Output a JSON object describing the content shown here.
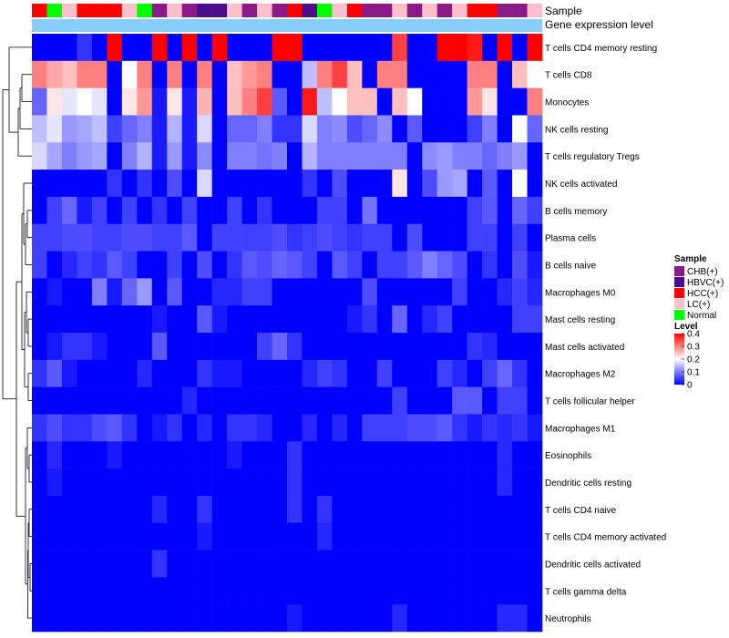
{
  "chart_data": {
    "type": "heatmap",
    "annotation_titles": [
      "Sample",
      "Gene expression level"
    ],
    "rows": [
      "T cells CD4 memory resting",
      "T cells CD8",
      "Monocytes",
      "NK cells resting",
      "T cells regulatory  Tregs",
      "NK cells activated",
      "B cells memory",
      "Plasma cells",
      "B cells naive",
      "Macrophages M0",
      "Mast cells resting",
      "Mast cells activated",
      "Macrophages M2",
      "T cells follicular helper",
      "Macrophages M1",
      "Eosinophils",
      "Dendritic cells resting",
      "T cells CD4 naive",
      "T cells CD4 memory activated",
      "Dendritic cells activated",
      "T cells gamma delta",
      "Neutrophils"
    ],
    "n_columns": 34,
    "sample_groups": [
      "HCC(+)",
      "Normal",
      "LC(+)",
      "HCC(+)",
      "HCC(+)",
      "HCC(+)",
      "LC(+)",
      "Normal",
      "CHB(+)",
      "LC(+)",
      "CHB(+)",
      "HBVC(+)",
      "HBVC(+)",
      "LC(+)",
      "CHB(+)",
      "LC(+)",
      "CHB(+)",
      "HCC(+)",
      "HBVC(+)",
      "Normal",
      "LC(+)",
      "HCC(+)",
      "CHB(+)",
      "CHB(+)",
      "LC(+)",
      "CHB(+)",
      "LC(+)",
      "CHB(+)",
      "LC(+)",
      "HCC(+)",
      "HCC(+)",
      "CHB(+)",
      "CHB(+)",
      "LC(+)"
    ],
    "values": [
      [
        0.0,
        0.0,
        0.0,
        0.04,
        0.0,
        0.4,
        0.0,
        0.0,
        0.4,
        0.0,
        0.4,
        0.0,
        0.4,
        0.0,
        0.0,
        0.0,
        0.4,
        0.4,
        0.0,
        0.0,
        0.0,
        0.0,
        0.0,
        0.0,
        0.35,
        0.0,
        0.0,
        0.4,
        0.4,
        0.38,
        0.0,
        0.4,
        0.0,
        0.4
      ],
      [
        0.3,
        0.27,
        0.25,
        0.3,
        0.3,
        0.0,
        0.2,
        0.3,
        0.0,
        0.3,
        0.0,
        0.3,
        0.0,
        0.25,
        0.28,
        0.3,
        0.0,
        0.0,
        0.15,
        0.3,
        0.35,
        0.25,
        0.0,
        0.3,
        0.3,
        0.0,
        0.0,
        0.0,
        0.0,
        0.3,
        0.3,
        0.0,
        0.25,
        0.2
      ],
      [
        0.08,
        0.22,
        0.18,
        0.2,
        0.18,
        0.0,
        0.22,
        0.28,
        0.02,
        0.22,
        0.02,
        0.26,
        0.0,
        0.25,
        0.3,
        0.35,
        0.07,
        0.0,
        0.38,
        0.15,
        0.2,
        0.25,
        0.25,
        0.0,
        0.25,
        0.2,
        0.0,
        0.0,
        0.0,
        0.28,
        0.22,
        0.0,
        0.0,
        0.3
      ],
      [
        0.15,
        0.18,
        0.12,
        0.13,
        0.15,
        0.05,
        0.08,
        0.1,
        0.02,
        0.14,
        0.02,
        0.17,
        0.0,
        0.08,
        0.08,
        0.1,
        0.04,
        0.04,
        0.17,
        0.1,
        0.11,
        0.06,
        0.08,
        0.11,
        0.0,
        0.07,
        0.0,
        0.0,
        0.0,
        0.05,
        0.1,
        0.0,
        0.2,
        0.08
      ],
      [
        0.17,
        0.13,
        0.1,
        0.12,
        0.13,
        0.0,
        0.1,
        0.14,
        0.02,
        0.12,
        0.02,
        0.11,
        0.0,
        0.1,
        0.1,
        0.09,
        0.1,
        0.0,
        0.14,
        0.1,
        0.1,
        0.1,
        0.1,
        0.1,
        0.1,
        0.0,
        0.11,
        0.12,
        0.1,
        0.1,
        0.08,
        0.1,
        0.12,
        0.0
      ],
      [
        0.0,
        0.0,
        0.0,
        0.0,
        0.0,
        0.04,
        0.0,
        0.04,
        0.0,
        0.06,
        0.0,
        0.17,
        0.0,
        0.0,
        0.0,
        0.0,
        0.0,
        0.0,
        0.04,
        0.0,
        0.06,
        0.0,
        0.0,
        0.0,
        0.22,
        0.0,
        0.06,
        0.12,
        0.13,
        0.0,
        0.07,
        0.0,
        0.2,
        0.0
      ],
      [
        0.0,
        0.05,
        0.08,
        0.02,
        0.05,
        0.0,
        0.05,
        0.0,
        0.04,
        0.0,
        0.05,
        0.0,
        0.0,
        0.05,
        0.0,
        0.04,
        0.0,
        0.0,
        0.0,
        0.05,
        0.05,
        0.0,
        0.09,
        0.0,
        0.0,
        0.0,
        0.0,
        0.0,
        0.0,
        0.05,
        0.07,
        0.0,
        0.08,
        0.05
      ],
      [
        0.05,
        0.05,
        0.06,
        0.06,
        0.05,
        0.05,
        0.06,
        0.06,
        0.05,
        0.05,
        0.07,
        0.0,
        0.05,
        0.05,
        0.05,
        0.05,
        0.06,
        0.04,
        0.05,
        0.06,
        0.05,
        0.04,
        0.05,
        0.05,
        0.0,
        0.06,
        0.0,
        0.0,
        0.0,
        0.05,
        0.05,
        0.0,
        0.05,
        0.0
      ],
      [
        0.05,
        0.0,
        0.03,
        0.05,
        0.04,
        0.07,
        0.05,
        0.0,
        0.0,
        0.05,
        0.0,
        0.06,
        0.0,
        0.04,
        0.07,
        0.06,
        0.08,
        0.07,
        0.05,
        0.0,
        0.07,
        0.05,
        0.0,
        0.05,
        0.05,
        0.07,
        0.1,
        0.08,
        0.06,
        0.0,
        0.04,
        0.0,
        0.06,
        0.02
      ],
      [
        0.0,
        0.02,
        0.0,
        0.0,
        0.1,
        0.02,
        0.08,
        0.12,
        0.0,
        0.07,
        0.0,
        0.0,
        0.03,
        0.03,
        0.05,
        0.05,
        0.0,
        0.0,
        0.0,
        0.0,
        0.0,
        0.0,
        0.06,
        0.0,
        0.0,
        0.0,
        0.0,
        0.0,
        0.05,
        0.0,
        0.0,
        0.03,
        0.05,
        0.03
      ],
      [
        0.0,
        0.0,
        0.0,
        0.0,
        0.0,
        0.0,
        0.0,
        0.0,
        0.02,
        0.0,
        0.0,
        0.07,
        0.02,
        0.0,
        0.0,
        0.0,
        0.0,
        0.0,
        0.0,
        0.0,
        0.0,
        0.02,
        0.04,
        0.0,
        0.08,
        0.0,
        0.03,
        0.05,
        0.0,
        0.0,
        0.0,
        0.0,
        0.05,
        0.05
      ],
      [
        0.0,
        0.02,
        0.04,
        0.04,
        0.02,
        0.0,
        0.0,
        0.0,
        0.07,
        0.0,
        0.0,
        0.0,
        0.0,
        0.0,
        0.0,
        0.05,
        0.08,
        0.04,
        0.0,
        0.0,
        0.0,
        0.0,
        0.0,
        0.0,
        0.0,
        0.0,
        0.0,
        0.0,
        0.0,
        0.04,
        0.03,
        0.0,
        0.0,
        0.0
      ],
      [
        0.04,
        0.07,
        0.02,
        0.0,
        0.0,
        0.0,
        0.0,
        0.03,
        0.0,
        0.0,
        0.0,
        0.04,
        0.02,
        0.02,
        0.0,
        0.0,
        0.0,
        0.0,
        0.03,
        0.05,
        0.04,
        0.0,
        0.0,
        0.05,
        0.0,
        0.0,
        0.0,
        0.05,
        0.03,
        0.0,
        0.05,
        0.08,
        0.04,
        0.0
      ],
      [
        0.0,
        0.0,
        0.0,
        0.0,
        0.0,
        0.0,
        0.0,
        0.0,
        0.0,
        0.0,
        0.03,
        0.0,
        0.0,
        0.0,
        0.0,
        0.0,
        0.0,
        0.0,
        0.0,
        0.0,
        0.0,
        0.0,
        0.0,
        0.0,
        0.05,
        0.0,
        0.0,
        0.0,
        0.07,
        0.07,
        0.0,
        0.05,
        0.05,
        0.0
      ],
      [
        0.04,
        0.06,
        0.04,
        0.04,
        0.06,
        0.07,
        0.04,
        0.0,
        0.02,
        0.04,
        0.0,
        0.03,
        0.0,
        0.04,
        0.04,
        0.03,
        0.0,
        0.0,
        0.03,
        0.0,
        0.03,
        0.0,
        0.05,
        0.05,
        0.05,
        0.06,
        0.06,
        0.07,
        0.04,
        0.02,
        0.04,
        0.03,
        0.04,
        0.02
      ],
      [
        0.0,
        0.03,
        0.0,
        0.0,
        0.0,
        0.02,
        0.0,
        0.0,
        0.0,
        0.0,
        0.0,
        0.0,
        0.0,
        0.02,
        0.0,
        0.0,
        0.0,
        0.04,
        0.0,
        0.0,
        0.0,
        0.0,
        0.0,
        0.0,
        0.0,
        0.0,
        0.0,
        0.0,
        0.0,
        0.0,
        0.0,
        0.03,
        0.0,
        0.0
      ],
      [
        0.0,
        0.02,
        0.0,
        0.0,
        0.0,
        0.0,
        0.0,
        0.0,
        0.0,
        0.0,
        0.0,
        0.0,
        0.0,
        0.0,
        0.0,
        0.0,
        0.0,
        0.04,
        0.0,
        0.0,
        0.0,
        0.0,
        0.0,
        0.0,
        0.0,
        0.0,
        0.0,
        0.0,
        0.0,
        0.0,
        0.0,
        0.03,
        0.0,
        0.0
      ],
      [
        0.0,
        0.0,
        0.0,
        0.0,
        0.0,
        0.0,
        0.0,
        0.0,
        0.03,
        0.0,
        0.0,
        0.04,
        0.0,
        0.0,
        0.0,
        0.0,
        0.0,
        0.04,
        0.0,
        0.04,
        0.0,
        0.0,
        0.0,
        0.0,
        0.0,
        0.0,
        0.0,
        0.0,
        0.0,
        0.0,
        0.0,
        0.0,
        0.0,
        0.0
      ],
      [
        0.0,
        0.0,
        0.0,
        0.0,
        0.0,
        0.0,
        0.0,
        0.0,
        0.0,
        0.0,
        0.0,
        0.02,
        0.0,
        0.0,
        0.0,
        0.0,
        0.0,
        0.0,
        0.0,
        0.03,
        0.0,
        0.0,
        0.0,
        0.0,
        0.0,
        0.0,
        0.0,
        0.0,
        0.0,
        0.0,
        0.0,
        0.0,
        0.0,
        0.0
      ],
      [
        0.0,
        0.0,
        0.0,
        0.0,
        0.0,
        0.0,
        0.0,
        0.0,
        0.04,
        0.0,
        0.0,
        0.0,
        0.0,
        0.0,
        0.0,
        0.0,
        0.0,
        0.0,
        0.0,
        0.0,
        0.0,
        0.0,
        0.0,
        0.0,
        0.0,
        0.0,
        0.0,
        0.0,
        0.0,
        0.0,
        0.0,
        0.0,
        0.0,
        0.0
      ],
      [
        0.0,
        0.0,
        0.0,
        0.0,
        0.0,
        0.0,
        0.0,
        0.0,
        0.0,
        0.0,
        0.0,
        0.0,
        0.0,
        0.0,
        0.0,
        0.0,
        0.0,
        0.0,
        0.0,
        0.0,
        0.0,
        0.0,
        0.0,
        0.0,
        0.0,
        0.0,
        0.0,
        0.0,
        0.0,
        0.0,
        0.0,
        0.0,
        0.0,
        0.0
      ],
      [
        0.0,
        0.0,
        0.0,
        0.0,
        0.0,
        0.0,
        0.0,
        0.0,
        0.0,
        0.0,
        0.0,
        0.0,
        0.0,
        0.0,
        0.0,
        0.0,
        0.0,
        0.02,
        0.0,
        0.0,
        0.0,
        0.0,
        0.0,
        0.0,
        0.03,
        0.0,
        0.0,
        0.0,
        0.0,
        0.0,
        0.0,
        0.03,
        0.03,
        0.0
      ]
    ],
    "legend": {
      "sample_title": "Sample",
      "sample_entries": [
        {
          "label": "CHB(+)",
          "color": "#8B1A89"
        },
        {
          "label": "HBVC(+)",
          "color": "#4B0D8A"
        },
        {
          "label": "HCC(+)",
          "color": "#FF0000"
        },
        {
          "label": "LC(+)",
          "color": "#FFC0CB"
        },
        {
          "label": "Normal",
          "color": "#00FF00"
        }
      ],
      "level_title": "Level",
      "level_ticks": [
        "0.4",
        "0.3",
        "0.2",
        "0.1",
        "0"
      ],
      "level_tick_values": [
        0.4,
        0.3,
        0.2,
        0.1,
        0.0
      ],
      "range": [
        0,
        0.4
      ]
    },
    "colorscale": {
      "low": "#0000FF",
      "mid": "#FFFFFF",
      "high": "#FF0000"
    },
    "expression_bar_color": "#87CEFA"
  }
}
